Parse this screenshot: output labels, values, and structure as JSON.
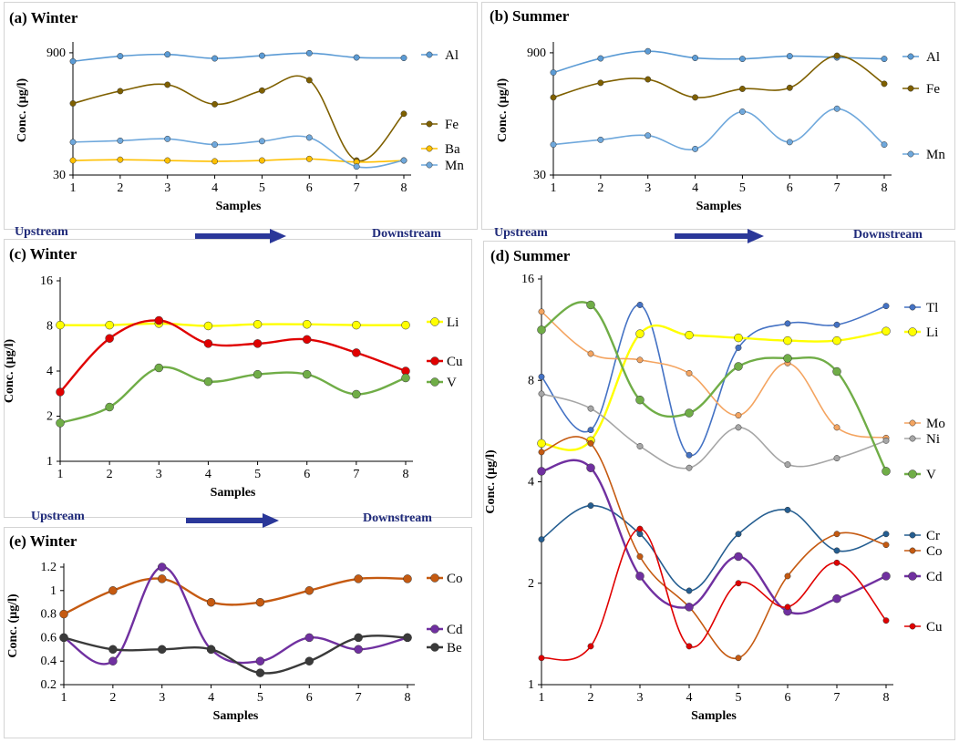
{
  "flow_labels": {
    "row1": {
      "upstream": "Upstream",
      "downstream": "Downstream"
    },
    "row2": {
      "upstream": "Upstream",
      "downstream": "Downstream"
    },
    "row3": {
      "upstream": "Upstream",
      "downstream": "Downstream"
    }
  },
  "colors": {
    "Al": "#5b9bd5",
    "Fe": "#7f6000",
    "Ba": "#ffc000",
    "Mn": "#6fa8dc",
    "Li": "#ffff00",
    "Cu": "#e00000",
    "V": "#70ad47",
    "Co": "#c55a11",
    "Cd": "#7030a0",
    "Be": "#3a3a3a",
    "Tl": "#4472c4",
    "Mo": "#f4a460",
    "Ni": "#a6a6a6",
    "Cr": "#255e91",
    "arrow": "#2a3799"
  },
  "chart_data": [
    {
      "id": "a",
      "type": "line",
      "title": "(a) Winter",
      "xlabel": "Samples",
      "ylabel": "Conc. (µg/l)",
      "x": [
        1,
        2,
        3,
        4,
        5,
        6,
        7,
        8
      ],
      "yscale": "log",
      "ylim": [
        30,
        1100
      ],
      "yticks": [
        30,
        900
      ],
      "ytick_labels": [
        "30",
        "900"
      ],
      "series": [
        {
          "name": "Al",
          "values": [
            710,
            820,
            860,
            770,
            830,
            890,
            790,
            780
          ]
        },
        {
          "name": "Fe",
          "values": [
            220,
            310,
            370,
            215,
            315,
            420,
            45,
            165
          ]
        },
        {
          "name": "Ba",
          "values": [
            45,
            46,
            45,
            44,
            45,
            47,
            43,
            45
          ]
        },
        {
          "name": "Mn",
          "values": [
            75,
            78,
            82,
            70,
            77,
            85,
            38,
            45
          ]
        }
      ]
    },
    {
      "id": "b",
      "type": "line",
      "title": "(b) Summer",
      "xlabel": "Samples",
      "ylabel": "Conc. (µg/l)",
      "x": [
        1,
        2,
        3,
        4,
        5,
        6,
        7,
        8
      ],
      "yscale": "log",
      "ylim": [
        30,
        1100
      ],
      "yticks": [
        30,
        900
      ],
      "ytick_labels": [
        "30",
        "900"
      ],
      "series": [
        {
          "name": "Al",
          "values": [
            520,
            770,
            940,
            780,
            760,
            820,
            790,
            760
          ]
        },
        {
          "name": "Fe",
          "values": [
            260,
            390,
            430,
            260,
            330,
            340,
            830,
            380
          ]
        },
        {
          "name": "Mn",
          "values": [
            70,
            80,
            90,
            62,
            175,
            75,
            190,
            70
          ]
        }
      ]
    },
    {
      "id": "c",
      "type": "line",
      "title": "(c) Winter",
      "xlabel": "Samples",
      "ylabel": "Conc. (µg/l)",
      "x": [
        1,
        2,
        3,
        4,
        5,
        6,
        7,
        8
      ],
      "yscale": "log",
      "ylim": [
        1,
        16
      ],
      "yticks": [
        1,
        2,
        4,
        8,
        16
      ],
      "ytick_labels": [
        "1",
        "2",
        "4",
        "8",
        "16"
      ],
      "series": [
        {
          "name": "Li",
          "values": [
            8.1,
            8.1,
            8.3,
            8.0,
            8.2,
            8.2,
            8.1,
            8.1
          ]
        },
        {
          "name": "Cu",
          "values": [
            2.9,
            6.6,
            8.7,
            6.1,
            6.1,
            6.5,
            5.3,
            4.0
          ]
        },
        {
          "name": "V",
          "values": [
            1.8,
            2.3,
            4.2,
            3.4,
            3.8,
            3.8,
            2.8,
            3.6
          ]
        }
      ]
    },
    {
      "id": "d",
      "type": "line",
      "title": "(d) Summer",
      "xlabel": "Samples",
      "ylabel": "Conc. (µg/l)",
      "x": [
        1,
        2,
        3,
        4,
        5,
        6,
        7,
        8
      ],
      "yscale": "log",
      "ylim": [
        1,
        16
      ],
      "yticks": [
        1,
        2,
        4,
        8,
        16
      ],
      "ytick_labels": [
        "1",
        "2",
        "4",
        "8",
        "16"
      ],
      "series": [
        {
          "name": "Tl",
          "values": [
            8.2,
            5.7,
            13.4,
            4.8,
            10.0,
            11.8,
            11.7,
            13.3
          ]
        },
        {
          "name": "Li",
          "values": [
            5.2,
            5.3,
            11.0,
            10.9,
            10.7,
            10.5,
            10.5,
            11.2
          ]
        },
        {
          "name": "Mo",
          "values": [
            12.8,
            9.6,
            9.2,
            8.4,
            6.3,
            9.0,
            5.8,
            5.4
          ]
        },
        {
          "name": "Ni",
          "values": [
            7.3,
            6.6,
            5.1,
            4.4,
            5.8,
            4.5,
            4.7,
            5.3
          ]
        },
        {
          "name": "V",
          "values": [
            11.3,
            13.4,
            7.0,
            6.4,
            8.8,
            9.3,
            8.5,
            4.3
          ]
        },
        {
          "name": "Cr",
          "values": [
            2.7,
            3.4,
            2.8,
            1.9,
            2.8,
            3.3,
            2.5,
            2.8
          ]
        },
        {
          "name": "Co",
          "values": [
            4.9,
            5.2,
            2.4,
            1.7,
            1.2,
            2.1,
            2.8,
            2.6
          ]
        },
        {
          "name": "Cd",
          "values": [
            4.3,
            4.4,
            2.1,
            1.7,
            2.4,
            1.65,
            1.8,
            2.1
          ]
        },
        {
          "name": "Cu",
          "values": [
            1.2,
            1.3,
            2.9,
            1.3,
            2.0,
            1.7,
            2.3,
            1.55
          ]
        }
      ]
    },
    {
      "id": "e",
      "type": "line",
      "title": "(e) Winter",
      "xlabel": "Samples",
      "ylabel": "Conc. (µg/l)",
      "x": [
        1,
        2,
        3,
        4,
        5,
        6,
        7,
        8
      ],
      "yscale": "linear",
      "ylim": [
        0.2,
        1.2
      ],
      "yticks": [
        0.2,
        0.4,
        0.6,
        0.8,
        1.0,
        1.2
      ],
      "ytick_labels": [
        "0.2",
        "0.4",
        "0.6",
        "0.8",
        "1",
        "1.2"
      ],
      "series": [
        {
          "name": "Co",
          "values": [
            0.8,
            1.0,
            1.1,
            0.9,
            0.9,
            1.0,
            1.1,
            1.1
          ]
        },
        {
          "name": "Cd",
          "values": [
            0.6,
            0.4,
            1.2,
            0.5,
            0.4,
            0.6,
            0.5,
            0.6
          ]
        },
        {
          "name": "Be",
          "values": [
            0.6,
            0.5,
            0.5,
            0.5,
            0.3,
            0.4,
            0.6,
            0.6
          ]
        }
      ]
    }
  ]
}
